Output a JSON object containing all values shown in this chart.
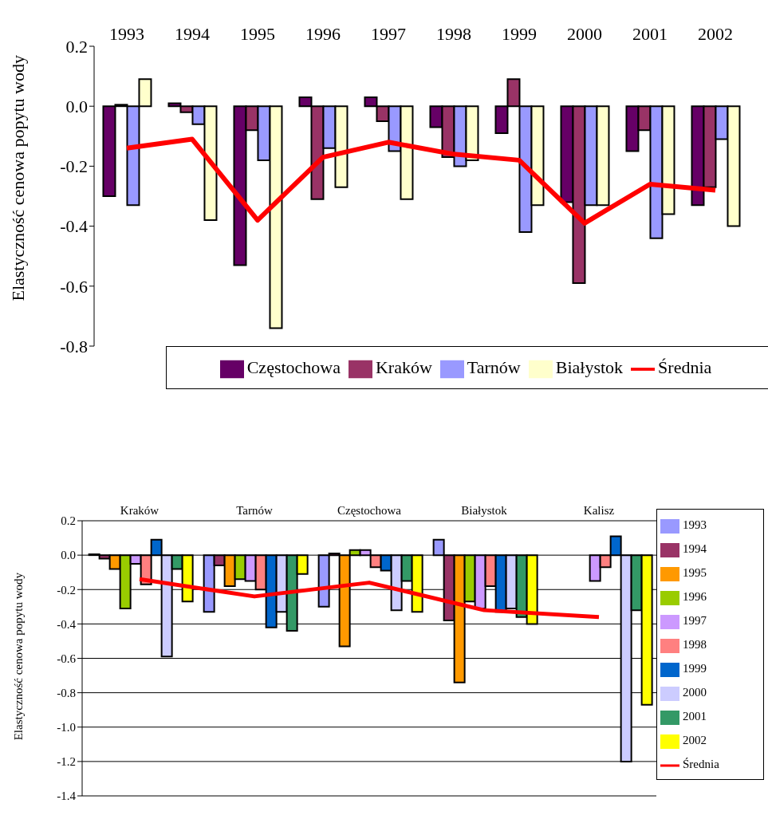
{
  "chart_data": [
    {
      "type": "bar",
      "ylabel": "Elastyczność cenowa popytu wody",
      "categories": [
        "1993",
        "1994",
        "1995",
        "1996",
        "1997",
        "1998",
        "1999",
        "2000",
        "2001",
        "2002"
      ],
      "series": [
        {
          "name": "Częstochowa",
          "color": "#660066",
          "values": [
            -0.3,
            0.01,
            -0.53,
            0.03,
            0.03,
            -0.07,
            -0.09,
            -0.32,
            -0.15,
            -0.33
          ]
        },
        {
          "name": "Kraków",
          "color": "#993366",
          "values": [
            0.005,
            -0.02,
            -0.08,
            -0.31,
            -0.05,
            -0.17,
            0.09,
            -0.59,
            -0.08,
            -0.27
          ]
        },
        {
          "name": "Tarnów",
          "color": "#9999ff",
          "values": [
            -0.33,
            -0.06,
            -0.18,
            -0.14,
            -0.15,
            -0.2,
            -0.42,
            -0.33,
            -0.44,
            -0.11
          ]
        },
        {
          "name": "Białystok",
          "color": "#ffffcc",
          "values": [
            0.09,
            -0.38,
            -0.74,
            -0.27,
            -0.31,
            -0.18,
            -0.33,
            -0.33,
            -0.36,
            -0.4
          ]
        },
        {
          "name": "Średnia",
          "type": "line",
          "color": "#ff0000",
          "values": [
            -0.14,
            -0.11,
            -0.38,
            -0.17,
            -0.12,
            -0.16,
            -0.18,
            -0.39,
            -0.26,
            -0.28
          ]
        }
      ],
      "ylim": [
        -0.8,
        0.2
      ],
      "yticks": [
        {
          "value": -0.8,
          "label": "-0.8"
        },
        {
          "value": -0.6,
          "label": "-0.6"
        },
        {
          "value": -0.4,
          "label": "-0.4"
        },
        {
          "value": -0.2,
          "label": "-0.2"
        },
        {
          "value": 0,
          "label": "0.0"
        },
        {
          "value": 0.2,
          "label": "0.2"
        }
      ],
      "grid": false,
      "legend": "bottom"
    },
    {
      "type": "bar",
      "ylabel": "Elastyczność cenowa popytu wody",
      "categories": [
        "Kraków",
        "Tarnów",
        "Częstochowa",
        "Białystok",
        "Kalisz"
      ],
      "series": [
        {
          "name": "1993",
          "color": "#9999ff",
          "values": [
            0.005,
            -0.33,
            -0.3,
            0.09,
            null
          ]
        },
        {
          "name": "1994",
          "color": "#993366",
          "values": [
            -0.02,
            -0.06,
            0.01,
            -0.38,
            null
          ]
        },
        {
          "name": "1995",
          "color": "#ff9900",
          "values": [
            -0.08,
            -0.18,
            -0.53,
            -0.74,
            null
          ]
        },
        {
          "name": "1996",
          "color": "#99cc00",
          "values": [
            -0.31,
            -0.14,
            0.03,
            -0.27,
            null
          ]
        },
        {
          "name": "1997",
          "color": "#cc99ff",
          "values": [
            -0.05,
            -0.15,
            0.03,
            -0.31,
            -0.15
          ]
        },
        {
          "name": "1998",
          "color": "#ff8080",
          "values": [
            -0.17,
            -0.2,
            -0.07,
            -0.18,
            -0.07
          ]
        },
        {
          "name": "1999",
          "color": "#0066cc",
          "values": [
            0.09,
            -0.42,
            -0.09,
            -0.33,
            0.11
          ]
        },
        {
          "name": "2000",
          "color": "#ccccff",
          "values": [
            -0.59,
            -0.33,
            -0.32,
            -0.31,
            -1.2
          ]
        },
        {
          "name": "2001",
          "color": "#339966",
          "values": [
            -0.08,
            -0.44,
            -0.15,
            -0.36,
            -0.32
          ]
        },
        {
          "name": "2002",
          "color": "#ffff00",
          "values": [
            -0.27,
            -0.11,
            -0.33,
            -0.4,
            -0.87
          ]
        },
        {
          "name": "Średnia",
          "type": "line",
          "color": "#ff0000",
          "values": [
            -0.14,
            -0.24,
            -0.16,
            -0.32,
            -0.36
          ]
        }
      ],
      "ylim": [
        -1.4,
        0.2
      ],
      "yticks": [
        {
          "value": -1.4,
          "label": "-1.4"
        },
        {
          "value": -1.2,
          "label": "-1.2"
        },
        {
          "value": -1.0,
          "label": "-1.0"
        },
        {
          "value": -0.8,
          "label": "-0.8"
        },
        {
          "value": -0.6,
          "label": "-0.6"
        },
        {
          "value": -0.4,
          "label": "-0.4"
        },
        {
          "value": -0.2,
          "label": "-0.2"
        },
        {
          "value": 0,
          "label": "0.0"
        },
        {
          "value": 0.2,
          "label": "0.2"
        }
      ],
      "grid": "y",
      "legend": "right"
    }
  ]
}
